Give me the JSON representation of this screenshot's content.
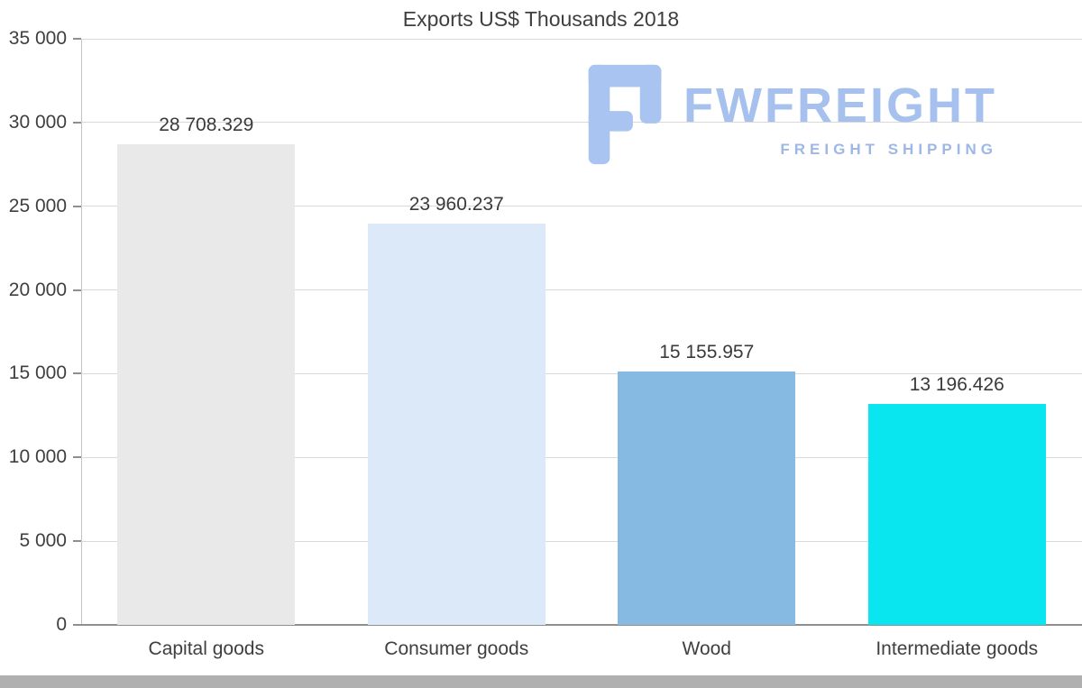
{
  "chart_data": {
    "type": "bar",
    "title": "Exports US$ Thousands 2018",
    "categories": [
      "Capital goods",
      "Consumer goods",
      "Wood",
      "Intermediate goods"
    ],
    "values": [
      28708.329,
      23960.237,
      15155.957,
      13196.426
    ],
    "value_labels": [
      "28 708.329",
      "23 960.237",
      "15 155.957",
      "13 196.426"
    ],
    "bar_colors": [
      "#e9e9e9",
      "#dbe9f8",
      "#87bae2",
      "#0ae6ef"
    ],
    "xlabel": "",
    "ylabel": "",
    "ylim": [
      0,
      35000
    ],
    "ytick_step": 5000,
    "ytick_labels": [
      "0",
      "5 000",
      "10 000",
      "15 000",
      "20 000",
      "25 000",
      "30 000",
      "35 000"
    ],
    "grid": true,
    "legend": "none"
  },
  "watermark": {
    "brand": "FWFREIGHT",
    "tagline": "FREIGHT SHIPPING",
    "brand_color": "#a6c1ee",
    "tagline_color": "#9db8e6",
    "mark_color": "#a9c4f1"
  }
}
